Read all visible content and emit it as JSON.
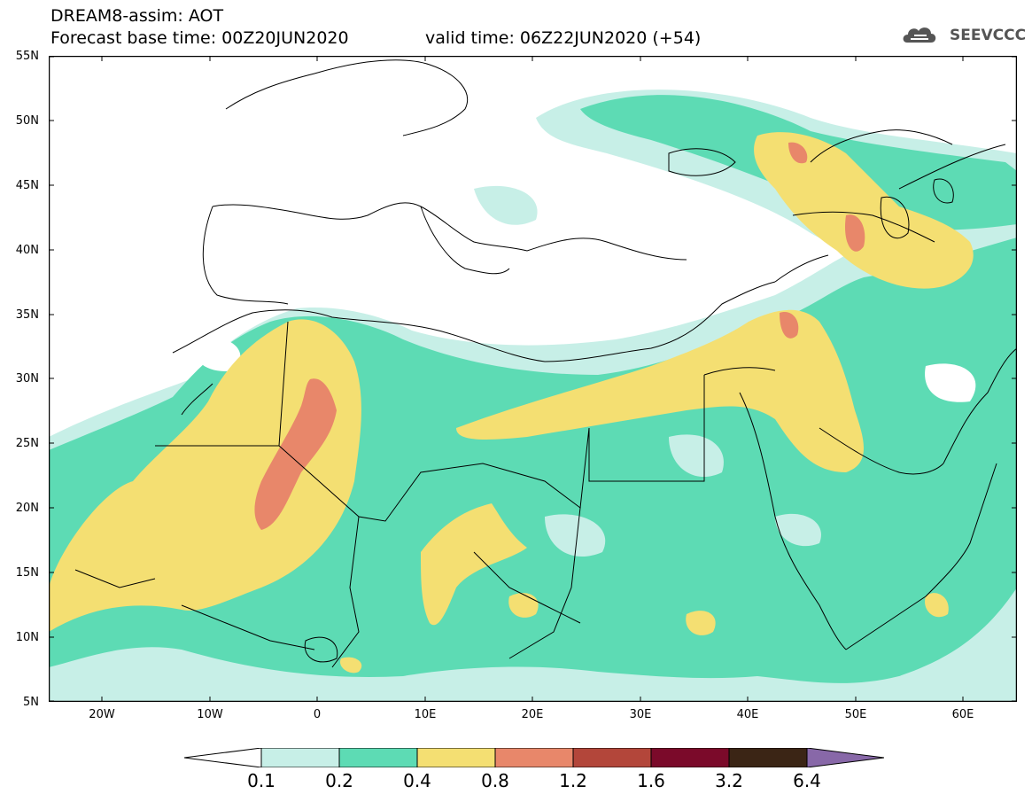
{
  "header": {
    "line1": "DREAM8-assim: AOT",
    "line2": "Forecast base time: 00Z20JUN2020",
    "line3": "valid time: 06Z22JUN2020 (+54)",
    "logo_text": "SEEVCCC"
  },
  "map": {
    "lat_labels": [
      "55N",
      "50N",
      "45N",
      "40N",
      "35N",
      "30N",
      "25N",
      "20N",
      "15N",
      "10N",
      "5N"
    ],
    "lon_labels": [
      "20W",
      "10W",
      "0",
      "10E",
      "20E",
      "30E",
      "40E",
      "50E",
      "60E"
    ],
    "lat_range": [
      5,
      55
    ],
    "lon_range": [
      -25,
      65
    ]
  },
  "colorbar": {
    "levels": [
      "0.1",
      "0.2",
      "0.4",
      "0.8",
      "1.2",
      "1.6",
      "3.2",
      "6.4"
    ],
    "colors": [
      "#ffffff",
      "#c7efe7",
      "#5ddbb4",
      "#f4df72",
      "#e8876a",
      "#b3463a",
      "#7b0a2a",
      "#3b2515",
      "#8868a8"
    ]
  }
}
